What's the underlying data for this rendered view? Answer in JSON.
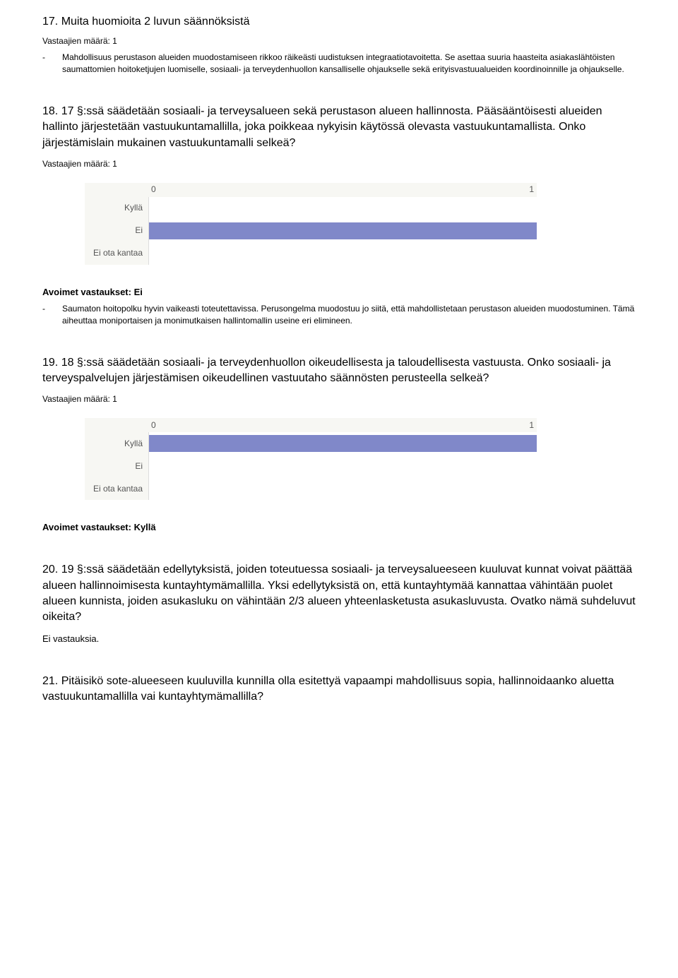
{
  "q17": {
    "heading": "17. Muita huomioita 2 luvun säännöksistä",
    "respondents": "Vastaajien määrä: 1",
    "bullet_dash": "-",
    "bullet_text": "Mahdollisuus perustason alueiden muodostamiseen rikkoo räikeästi uudistuksen integraatiotavoitetta. Se asettaa suuria haasteita asiakaslähtöisten saumattomien hoitoketjujen luomiselle, sosiaali- ja terveydenhuollon kansalliselle ohjaukselle sekä erityisvastuualueiden koordinoinnille ja ohjaukselle."
  },
  "q18": {
    "heading": "18. 17 §:ssä säädetään sosiaali- ja terveysalueen sekä perustason alueen hallinnosta. Pääsääntöisesti alueiden hallinto järjestetään vastuukuntamallilla, joka poikkeaa nykyisin käytössä olevasta vastuukuntamallista. Onko järjestämislain mukainen vastuukuntamalli selkeä?",
    "respondents": "Vastaajien määrä: 1",
    "chart": {
      "axis_min": "0",
      "axis_max": "1",
      "categories": [
        "Kyllä",
        "Ei",
        "Ei ota kantaa"
      ],
      "values": [
        0,
        1,
        0
      ],
      "bar_color": "#8088c9",
      "bg_color": "#f7f7f3",
      "max_value": 1
    },
    "answers_heading": "Avoimet vastaukset: Ei",
    "bullet_dash": "-",
    "bullet_text": "Saumaton hoitopolku hyvin vaikeasti toteutettavissa. Perusongelma muodostuu jo siitä, että mahdollistetaan perustason alueiden muodostuminen. Tämä aiheuttaa moniportaisen ja monimutkaisen hallintomallin useine eri elimineen."
  },
  "q19": {
    "heading": "19. 18 §:ssä säädetään sosiaali- ja terveydenhuollon oikeudellisesta ja taloudellisesta vastuusta. Onko sosiaali- ja terveyspalvelujen järjestämisen oikeudellinen vastuutaho säännösten perusteella selkeä?",
    "respondents": "Vastaajien määrä: 1",
    "chart": {
      "axis_min": "0",
      "axis_max": "1",
      "categories": [
        "Kyllä",
        "Ei",
        "Ei ota kantaa"
      ],
      "values": [
        1,
        0,
        0
      ],
      "bar_color": "#8088c9",
      "bg_color": "#f7f7f3",
      "max_value": 1
    },
    "answers_heading": "Avoimet vastaukset: Kyllä"
  },
  "q20": {
    "heading": "20. 19 §:ssä säädetään edellytyksistä, joiden toteutuessa sosiaali- ja terveysalueeseen kuuluvat kunnat voivat päättää alueen hallinnoimisesta kuntayhtymämallilla. Yksi edellytyksistä on, että kuntayhtymää kannattaa vähintään puolet alueen kunnista, joiden asukasluku on vähintään 2/3 alueen yhteenlasketusta asukasluvusta. Ovatko nämä suhdeluvut oikeita?",
    "no_answer": "Ei vastauksia."
  },
  "q21": {
    "heading": "21. Pitäisikö sote-alueeseen kuuluvilla kunnilla olla esitettyä vapaampi mahdollisuus sopia, hallinnoidaanko aluetta vastuukuntamallilla vai kuntayhtymämallilla?"
  }
}
